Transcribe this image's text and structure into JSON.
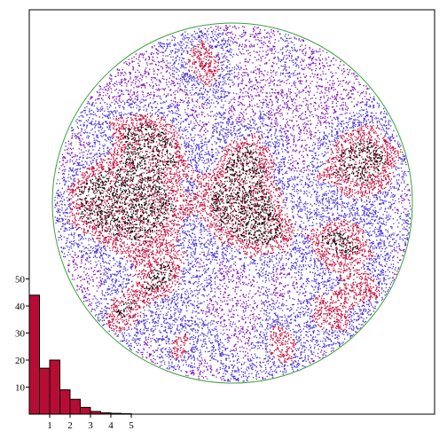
{
  "chart_data": [
    {
      "type": "scatter",
      "description_shape": "circular density field",
      "colors": {
        "points_low": "#7b12b8",
        "points_mid": "#4a33d6",
        "points_high": "#c2113f",
        "points_peak": "#000000",
        "boundary": "#3ca23c",
        "frame": "#000000"
      }
    },
    {
      "type": "bar",
      "categories": [
        "0-0.5",
        "0.5-1",
        "1-1.5",
        "1.5-2",
        "2-2.5",
        "2.5-3",
        "3-3.5",
        "3.5-4",
        "4-4.5",
        "4.5-5"
      ],
      "values": [
        44,
        17,
        20,
        9,
        5.5,
        2.5,
        1,
        0.5,
        0.3,
        0.2
      ],
      "bin_edges": [
        0,
        0.5,
        1,
        1.5,
        2,
        2.5,
        3,
        3.5,
        4,
        4.5,
        5
      ],
      "xlim": [
        0,
        5.5
      ],
      "ylim": [
        0,
        50
      ],
      "xticks": [
        1,
        2,
        3,
        4,
        5
      ],
      "yticks": [
        10,
        20,
        30,
        40,
        50
      ],
      "xtick_labels": [
        "1",
        "2",
        "3",
        "4",
        "5"
      ],
      "ytick_labels": [
        "10",
        "20",
        "30",
        "40",
        "50"
      ],
      "colors": {
        "bar_fill": "#b70d35",
        "bar_edge": "#000000",
        "axis": "#000000"
      }
    }
  ]
}
